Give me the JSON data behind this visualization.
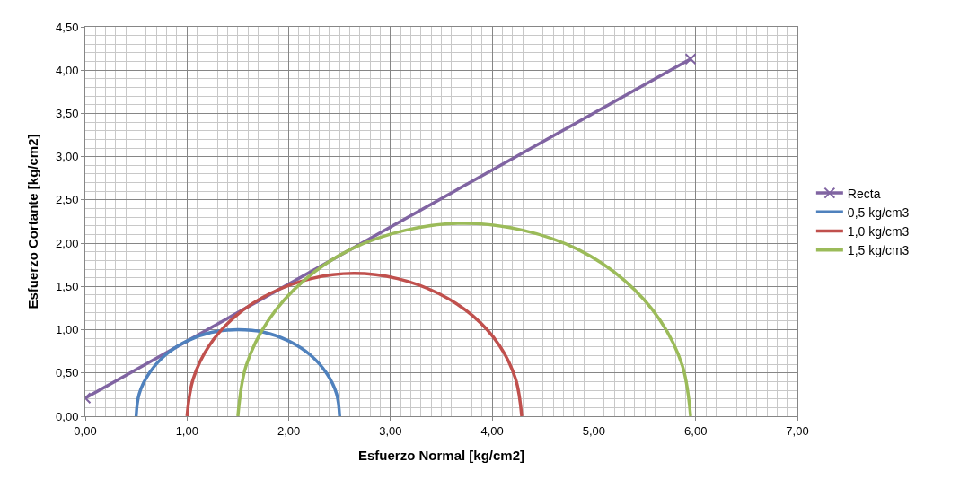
{
  "chart_data": {
    "type": "line",
    "xlabel": "Esfuerzo Normal [kg/cm2]",
    "ylabel": "Esfuerzo Cortante [kg/cm2]",
    "xlim": [
      0,
      7
    ],
    "ylim": [
      0,
      4.5
    ],
    "xticks": [
      {
        "value": 0,
        "label": "0,00"
      },
      {
        "value": 1,
        "label": "1,00"
      },
      {
        "value": 2,
        "label": "2,00"
      },
      {
        "value": 3,
        "label": "3,00"
      },
      {
        "value": 4,
        "label": "4,00"
      },
      {
        "value": 5,
        "label": "5,00"
      },
      {
        "value": 6,
        "label": "6,00"
      },
      {
        "value": 7,
        "label": "7,00"
      }
    ],
    "yticks": [
      {
        "value": 0,
        "label": "0,00"
      },
      {
        "value": 0.5,
        "label": "0,50"
      },
      {
        "value": 1,
        "label": "1,00"
      },
      {
        "value": 1.5,
        "label": "1,50"
      },
      {
        "value": 2,
        "label": "2,00"
      },
      {
        "value": 2.5,
        "label": "2,50"
      },
      {
        "value": 3,
        "label": "3,00"
      },
      {
        "value": 3.5,
        "label": "3,50"
      },
      {
        "value": 4,
        "label": "4,00"
      },
      {
        "value": 4.5,
        "label": "4,50"
      }
    ],
    "grid": true,
    "legend": "right",
    "line_style": "solid",
    "series": [
      {
        "name": "Recta",
        "color": "#8064a2",
        "marker": "cross",
        "x": [
          0,
          5.95
        ],
        "values": [
          0.21,
          4.13
        ]
      },
      {
        "name": "0,5 kg/cm3",
        "color": "#4f81bd",
        "marker": "none",
        "x": [
          0.5,
          0.53,
          0.63,
          0.79,
          1.0,
          1.24,
          1.5,
          1.76,
          2.0,
          2.21,
          2.37,
          2.47,
          2.5
        ],
        "values": [
          0,
          0.26,
          0.5,
          0.71,
          0.87,
          0.97,
          1.0,
          0.97,
          0.87,
          0.71,
          0.5,
          0.26,
          0
        ]
      },
      {
        "name": "1,0 kg/cm3",
        "color": "#c0504d",
        "marker": "none",
        "x": [
          1.0,
          1.06,
          1.22,
          1.48,
          1.82,
          2.22,
          2.64,
          3.07,
          3.47,
          3.81,
          4.07,
          4.23,
          4.29
        ],
        "values": [
          0,
          0.43,
          0.82,
          1.16,
          1.42,
          1.59,
          1.65,
          1.59,
          1.42,
          1.16,
          0.82,
          0.43,
          0
        ]
      },
      {
        "name": "1,5 kg/cm3",
        "color": "#9bbb59",
        "marker": "none",
        "x": [
          1.5,
          1.58,
          1.8,
          2.15,
          2.61,
          3.15,
          3.73,
          4.3,
          4.84,
          5.3,
          5.65,
          5.87,
          5.95
        ],
        "values": [
          0,
          0.58,
          1.11,
          1.57,
          1.93,
          2.15,
          2.23,
          2.15,
          1.93,
          1.57,
          1.11,
          0.58,
          0
        ]
      }
    ]
  }
}
